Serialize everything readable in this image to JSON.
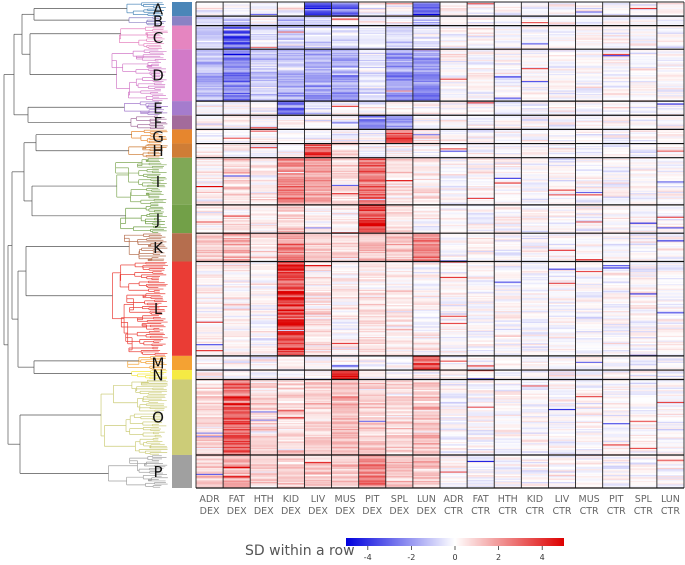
{
  "chart_data": {
    "type": "heatmap",
    "title": "",
    "columns": [
      {
        "tissue": "ADR",
        "treatment": "DEX"
      },
      {
        "tissue": "FAT",
        "treatment": "DEX"
      },
      {
        "tissue": "HTH",
        "treatment": "DEX"
      },
      {
        "tissue": "KID",
        "treatment": "DEX"
      },
      {
        "tissue": "LIV",
        "treatment": "DEX"
      },
      {
        "tissue": "MUS",
        "treatment": "DEX"
      },
      {
        "tissue": "PIT",
        "treatment": "DEX"
      },
      {
        "tissue": "SPL",
        "treatment": "DEX"
      },
      {
        "tissue": "LUN",
        "treatment": "DEX"
      },
      {
        "tissue": "ADR",
        "treatment": "CTR"
      },
      {
        "tissue": "FAT",
        "treatment": "CTR"
      },
      {
        "tissue": "HTH",
        "treatment": "CTR"
      },
      {
        "tissue": "KID",
        "treatment": "CTR"
      },
      {
        "tissue": "LIV",
        "treatment": "CTR"
      },
      {
        "tissue": "MUS",
        "treatment": "CTR"
      },
      {
        "tissue": "PIT",
        "treatment": "CTR"
      },
      {
        "tissue": "SPL",
        "treatment": "CTR"
      },
      {
        "tissue": "LUN",
        "treatment": "CTR"
      }
    ],
    "clusters": [
      {
        "label": "A",
        "color": "#4a86b8",
        "rows": 3,
        "profile": [
          0,
          0,
          0,
          0,
          -3.5,
          -2.8,
          0,
          0,
          -2.6,
          0,
          0,
          0,
          0,
          0,
          0,
          0,
          0,
          0
        ]
      },
      {
        "label": "B",
        "color": "#8a82c4",
        "rows": 2,
        "profile": [
          -0.8,
          -1.5,
          0,
          -1.2,
          -1,
          0,
          0,
          0,
          -1.5,
          0,
          0,
          0,
          0,
          0,
          0,
          0,
          0,
          0
        ]
      },
      {
        "label": "C",
        "color": "#e585c0",
        "rows": 5,
        "profile": [
          -0.8,
          -3.5,
          -0.8,
          -1,
          -0.6,
          -0.6,
          -0.3,
          -0.8,
          -0.6,
          0,
          0,
          0,
          0,
          0,
          0,
          0,
          0,
          0
        ]
      },
      {
        "label": "D",
        "color": "#d27ac8",
        "rows": 11,
        "profile": [
          -1.4,
          -2.5,
          -1,
          -1.3,
          -1.8,
          -1.8,
          -0.5,
          -1.9,
          -2.2,
          0,
          0,
          0,
          0,
          0,
          0,
          0,
          0,
          0
        ]
      },
      {
        "label": "E",
        "color": "#a57ccd",
        "rows": 3,
        "profile": [
          0,
          0,
          0,
          -3,
          -0.5,
          0,
          0,
          0,
          0,
          0,
          0,
          0,
          0,
          0,
          0,
          0,
          0,
          0
        ]
      },
      {
        "label": "F",
        "color": "#a36b9b",
        "rows": 3,
        "profile": [
          0,
          0,
          0,
          0,
          0,
          0,
          -2.6,
          -2,
          0,
          0,
          0,
          0,
          0,
          0,
          0,
          0,
          0,
          0
        ]
      },
      {
        "label": "G",
        "color": "#e6862e",
        "rows": 3,
        "profile": [
          0,
          0,
          0,
          0,
          0,
          0,
          0,
          3.2,
          0.6,
          0,
          0,
          0,
          0,
          0,
          0,
          0,
          0,
          0
        ]
      },
      {
        "label": "H",
        "color": "#cf7d36",
        "rows": 3,
        "profile": [
          0,
          0,
          0,
          0,
          3.6,
          0.6,
          0,
          0,
          0,
          0,
          0,
          0,
          0,
          0,
          0,
          0,
          0,
          0
        ]
      },
      {
        "label": "I",
        "color": "#80a856",
        "rows": 10,
        "profile": [
          0.4,
          0.8,
          0.4,
          2.5,
          1.8,
          0.8,
          3,
          0.6,
          0.4,
          0,
          0,
          0,
          0,
          0,
          0,
          0,
          0,
          0
        ]
      },
      {
        "label": "J",
        "color": "#72a048",
        "rows": 6,
        "profile": [
          0.3,
          0.4,
          0.2,
          1,
          0.4,
          0.2,
          3.8,
          0.4,
          0.2,
          0,
          0,
          0,
          0,
          0,
          0,
          0,
          0,
          0
        ]
      },
      {
        "label": "K",
        "color": "#b56e4e",
        "rows": 6,
        "profile": [
          1,
          1.4,
          0.6,
          2.2,
          1,
          0.6,
          1.2,
          1.1,
          2.4,
          0,
          0,
          0,
          0,
          0,
          0,
          0,
          0,
          0
        ]
      },
      {
        "label": "L",
        "color": "#ea3c35",
        "rows": 20,
        "profile": [
          0.2,
          0.3,
          0.1,
          4,
          0.5,
          0.1,
          0.6,
          0.4,
          0.2,
          0,
          0,
          0,
          0,
          0,
          0,
          0,
          0,
          0
        ]
      },
      {
        "label": "M",
        "color": "#f4a233",
        "rows": 3,
        "profile": [
          0,
          0,
          0,
          0,
          0,
          0,
          0,
          0,
          3.2,
          0,
          0,
          0,
          0,
          0,
          0,
          0,
          0,
          0
        ]
      },
      {
        "label": "N",
        "color": "#f5ea44",
        "rows": 2,
        "profile": [
          0,
          0,
          0,
          0,
          0,
          3.8,
          0,
          0,
          0,
          0,
          0,
          0,
          0,
          0,
          0,
          0,
          0,
          0
        ]
      },
      {
        "label": "O",
        "color": "#cccc78",
        "rows": 16,
        "profile": [
          0.8,
          3.4,
          0.8,
          0.7,
          0.9,
          1.4,
          1,
          0.8,
          1.2,
          0,
          0,
          0,
          0,
          0,
          0,
          0,
          0,
          0
        ]
      },
      {
        "label": "P",
        "color": "#a0a0a0",
        "rows": 7,
        "profile": [
          1,
          1.5,
          0.8,
          1,
          1,
          1,
          2.4,
          1.2,
          1,
          0,
          0,
          0,
          0,
          0,
          0,
          0,
          0,
          0
        ]
      }
    ],
    "colorbar": {
      "title": "SD within a row",
      "range": [
        -5,
        5
      ],
      "ticks": [
        -4,
        -2,
        0,
        2,
        4
      ],
      "low_color": "#0000dd",
      "mid_color": "#ffffff",
      "high_color": "#dd0000"
    }
  }
}
